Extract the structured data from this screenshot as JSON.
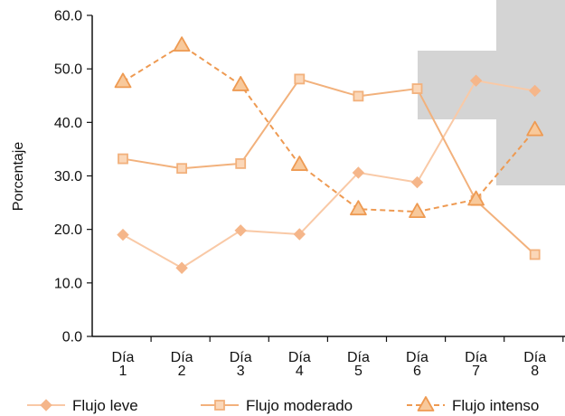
{
  "chart_data": {
    "type": "line",
    "title": "",
    "xlabel": "",
    "ylabel": "Porcentaje",
    "ylim": [
      0,
      60
    ],
    "yticks": [
      "0.0",
      "10.0",
      "20.0",
      "30.0",
      "40.0",
      "50.0",
      "60.0"
    ],
    "categories": [
      [
        "Día",
        "1"
      ],
      [
        "Día",
        "2"
      ],
      [
        "Día",
        "3"
      ],
      [
        "Día",
        "4"
      ],
      [
        "Día",
        "5"
      ],
      [
        "Día",
        "6"
      ],
      [
        "Día",
        "7"
      ],
      [
        "Día",
        "8"
      ]
    ],
    "grid": false,
    "legend_position": "bottom",
    "series": [
      {
        "name": "Flujo leve",
        "marker": "diamond",
        "line": "solid",
        "color": "#f9c9a6",
        "marker_fill": "#f5b68a",
        "values": [
          19.0,
          12.8,
          19.8,
          19.1,
          30.6,
          28.8,
          47.8,
          45.9
        ]
      },
      {
        "name": "Flujo moderado",
        "marker": "square",
        "line": "solid",
        "color": "#f2b17c",
        "marker_fill": "#fbd7b8",
        "values": [
          33.2,
          31.4,
          32.3,
          48.1,
          44.9,
          46.3,
          25.4,
          15.3
        ]
      },
      {
        "name": "Flujo intenso",
        "marker": "triangle",
        "line": "dashed",
        "color": "#ee9a52",
        "marker_fill": "#f8c99b",
        "values": [
          47.6,
          54.4,
          47.0,
          32.1,
          23.8,
          23.3,
          25.6,
          38.6
        ]
      }
    ]
  }
}
